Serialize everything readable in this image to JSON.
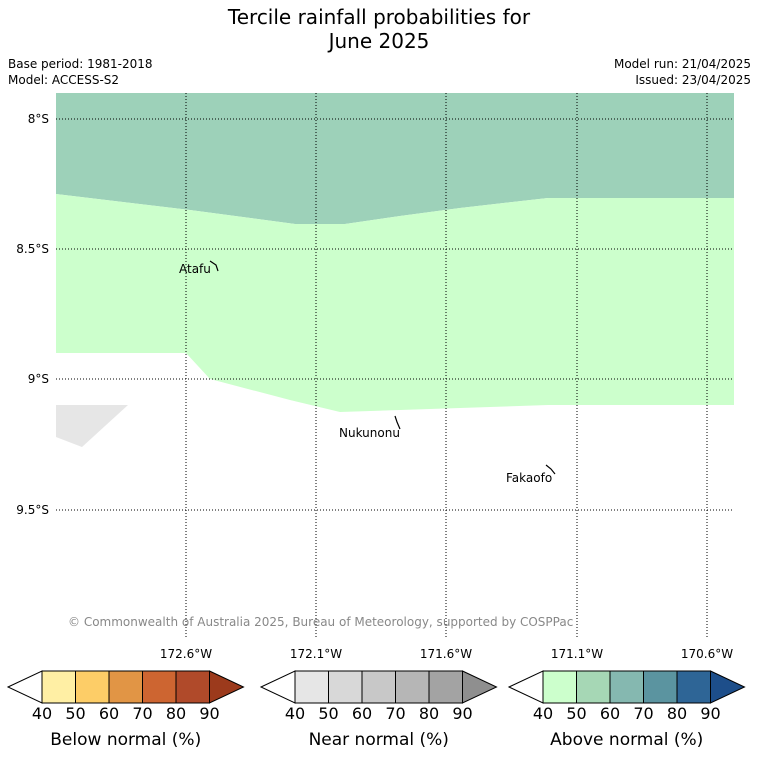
{
  "title_line1": "Tercile rainfall probabilities for",
  "title_line2": "June 2025",
  "base_period": "Base period: 1981-2018",
  "model": "Model: ACCESS-S2",
  "model_run": "Model run: 21/04/2025",
  "issued": "Issued: 23/04/2025",
  "copyright": "© Commonwealth of Australia 2025, Bureau of Meteorology, supported by COSPPac",
  "map": {
    "lat_labels": [
      "8°S",
      "8.5°S",
      "9°S",
      "9.5°S"
    ],
    "lon_labels": [
      "172.6°W",
      "172.1°W",
      "171.6°W",
      "171.1°W",
      "170.6°W"
    ],
    "places": [
      "Atafu",
      "Nukunonu",
      "Fakaofo"
    ],
    "regions": [
      {
        "category": "Above normal",
        "probability_band": "50-60",
        "color": "#9dd1b9"
      },
      {
        "category": "Above normal",
        "probability_band": "40-50",
        "color": "#ccffcc"
      },
      {
        "category": "Near normal",
        "probability_band": "40-50",
        "color": "#e6e6e6"
      }
    ]
  },
  "colorbars": [
    {
      "label": "Below normal (%)",
      "ticks": [
        "40",
        "50",
        "60",
        "70",
        "80",
        "90"
      ],
      "colors": [
        "#ffffff",
        "#ffefa4",
        "#fdcd67",
        "#e19545",
        "#cd6531",
        "#b04a2a",
        "#9c3a1c"
      ]
    },
    {
      "label": "Near normal (%)",
      "ticks": [
        "40",
        "50",
        "60",
        "70",
        "80",
        "90"
      ],
      "colors": [
        "#ffffff",
        "#e6e6e6",
        "#d8d8d8",
        "#c8c8c8",
        "#b6b6b6",
        "#a3a3a3",
        "#8f8f8f"
      ]
    },
    {
      "label": "Above normal (%)",
      "ticks": [
        "40",
        "50",
        "60",
        "70",
        "80",
        "90"
      ],
      "colors": [
        "#ffffff",
        "#ccffcc",
        "#a6d7b5",
        "#85b8b0",
        "#5b94a0",
        "#2e6596",
        "#1d4e8a"
      ]
    }
  ]
}
